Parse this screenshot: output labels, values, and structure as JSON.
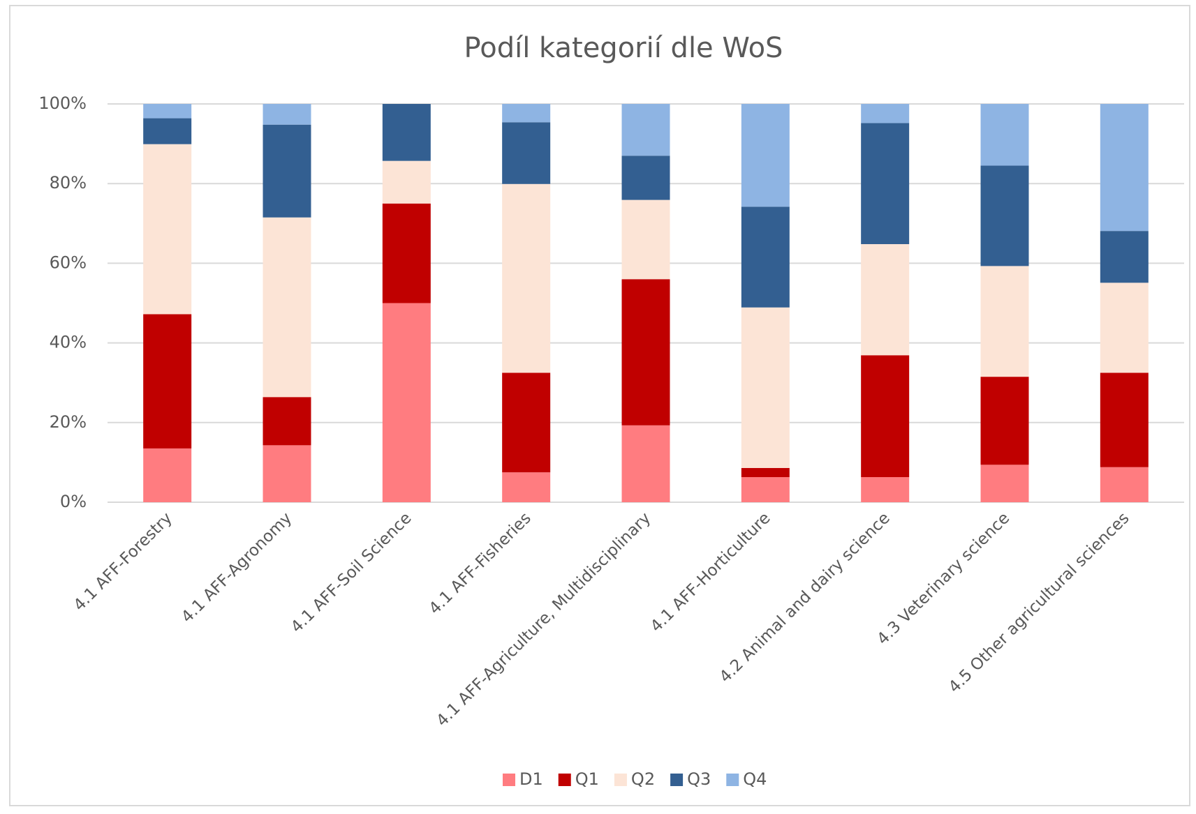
{
  "chart_data": {
    "type": "stacked_bar",
    "title": "Podíl kategorií dle WoS",
    "categories": [
      "4.1 AFF-Forestry",
      "4.1 AFF-Agronomy",
      "4.1 AFF-Soil Science",
      "4.1 AFF-Fisheries",
      "4.1 AFF-Agriculture, Multidisciplinary",
      "4.1 AFF-Horticulture",
      "4.2 Animal and dairy science",
      "4.3 Veterinary science",
      "4.5 Other agricultural sciences"
    ],
    "series": [
      {
        "name": "D1",
        "color": "#ff7c80",
        "values": [
          13.5,
          14.3,
          50,
          7.5,
          19.3,
          6.3,
          6.3,
          9.4,
          8.8
        ]
      },
      {
        "name": "Q1",
        "color": "#c00000",
        "values": [
          33.7,
          12.1,
          25,
          25,
          36.7,
          2.3,
          30.6,
          22.1,
          23.7
        ]
      },
      {
        "name": "Q2",
        "color": "#fce4d6",
        "values": [
          42.7,
          45.1,
          10.7,
          47.4,
          19.9,
          40.3,
          27.9,
          27.8,
          22.6
        ]
      },
      {
        "name": "Q3",
        "color": "#335f91",
        "values": [
          6.5,
          23.3,
          14.3,
          15.5,
          11.1,
          25.3,
          30.4,
          25.2,
          13
        ]
      },
      {
        "name": "Q4",
        "color": "#8eb4e3",
        "values": [
          3.6,
          5.2,
          0,
          4.6,
          13,
          25.8,
          4.8,
          15.5,
          31.9
        ]
      }
    ],
    "ylim": [
      0,
      100
    ],
    "yticks": [
      {
        "value": 0,
        "label": "0%"
      },
      {
        "value": 20,
        "label": "20%"
      },
      {
        "value": 40,
        "label": "40%"
      },
      {
        "value": 60,
        "label": "60%"
      },
      {
        "value": 80,
        "label": "80%"
      },
      {
        "value": 100,
        "label": "100%"
      }
    ],
    "grid": true,
    "legend": "bottom"
  }
}
